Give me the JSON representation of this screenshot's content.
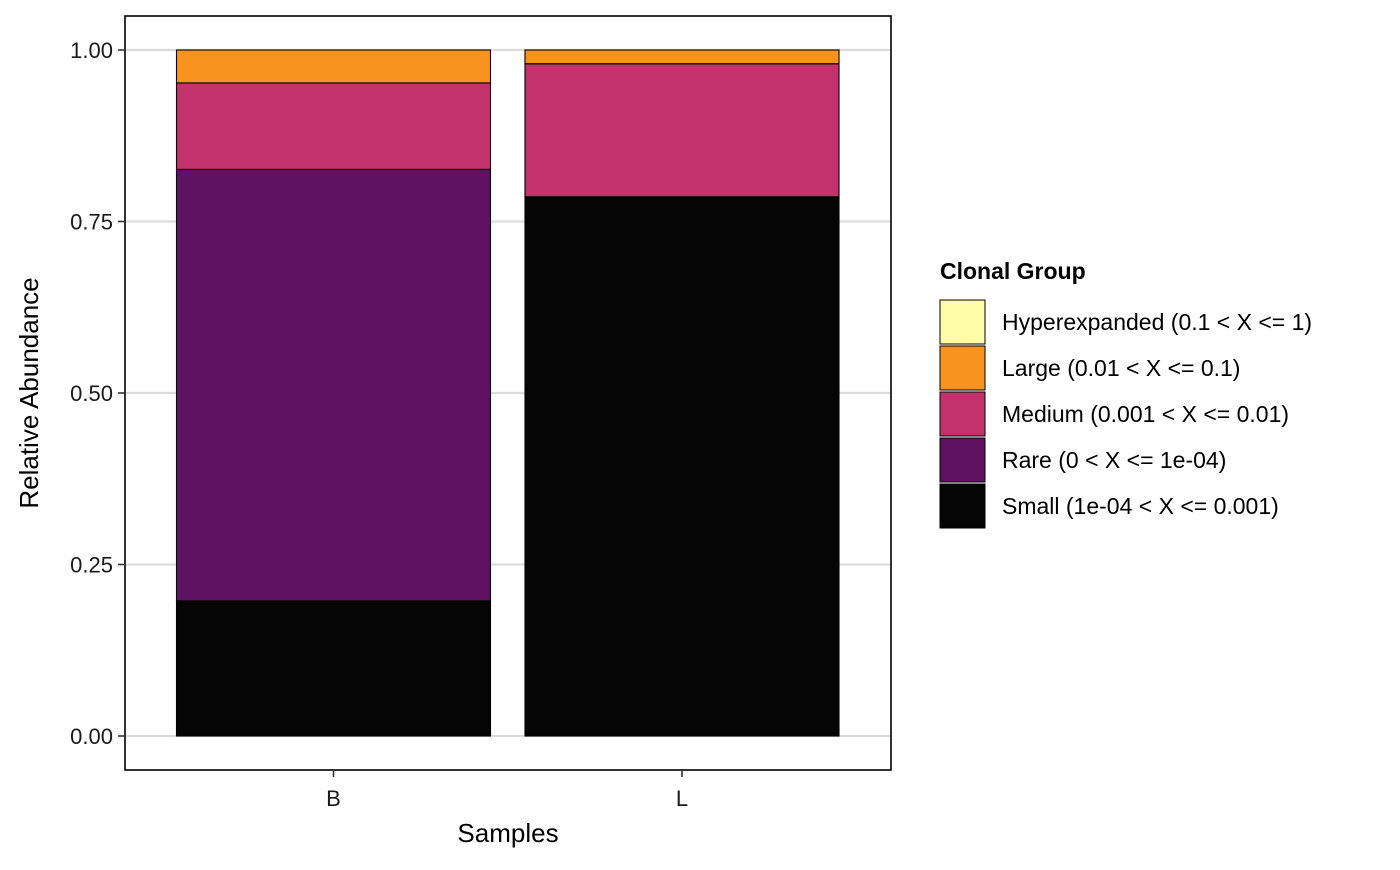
{
  "chart_data": {
    "type": "bar",
    "stacked": true,
    "normalized": true,
    "xlabel": "Samples",
    "ylabel": "Relative Abundance",
    "categories": [
      "B",
      "L"
    ],
    "ylim": [
      0,
      1
    ],
    "yticks": [
      "0.00",
      "0.25",
      "0.50",
      "0.75",
      "1.00"
    ],
    "ytick_values": [
      0,
      0.25,
      0.5,
      0.75,
      1
    ],
    "grid": "horizontal",
    "legend": {
      "title": "Clonal Group",
      "position": "right",
      "entries": [
        {
          "label": "Hyperexpanded (0.1 < X <= 1)",
          "color": "#FCFDA4"
        },
        {
          "label": "Large (0.01 < X <= 0.1)",
          "color": "#F7931E"
        },
        {
          "label": "Medium (0.001 < X <= 0.01)",
          "color": "#C3336B"
        },
        {
          "label": "Rare (0 < X <= 1e-04)",
          "color": "#5E1262"
        },
        {
          "label": "Small (1e-04 < X <= 0.001)",
          "color": "#050505"
        }
      ]
    },
    "series": [
      {
        "name": "Small (1e-04 < X <= 0.001)",
        "color": "#050505",
        "values": [
          0.197,
          0.786
        ]
      },
      {
        "name": "Rare (0 < X <= 1e-04)",
        "color": "#5E1262",
        "values": [
          0.629,
          0
        ]
      },
      {
        "name": "Medium (0.001 < X <= 0.01)",
        "color": "#C3336B",
        "values": [
          0.126,
          0.194
        ]
      },
      {
        "name": "Large (0.01 < X <= 0.1)",
        "color": "#F7931E",
        "values": [
          0.048,
          0.02
        ]
      },
      {
        "name": "Hyperexpanded (0.1 < X <= 1)",
        "color": "#FCFDA4",
        "values": [
          0,
          0
        ]
      }
    ]
  }
}
